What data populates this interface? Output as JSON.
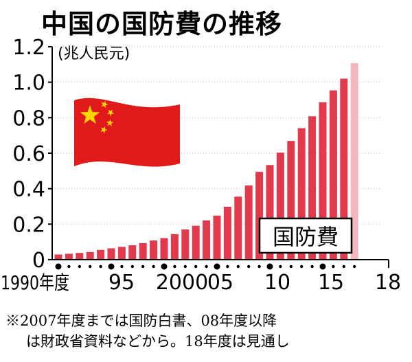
{
  "title": "中国の国防費の推移",
  "colors": {
    "bar": "#e23a4c",
    "bar_projected": "#f4b7bf",
    "flag_red": "#e01a1a",
    "flag_star": "#ffd700",
    "axis": "#000000"
  },
  "chart_data": {
    "type": "bar",
    "title": "中国の国防費の推移",
    "unit_label": "(兆人民元)",
    "series_label": "国防費",
    "xlabel": "",
    "ylabel": "",
    "ylim": [
      0,
      1.2
    ],
    "yticks": [
      0,
      0.2,
      0.4,
      0.6,
      0.8,
      1.0,
      1.2
    ],
    "ytick_labels": [
      "0",
      "0.2",
      "0.4",
      "0.6",
      "0.8",
      "1.0",
      "1.2"
    ],
    "x_labels": [
      "1990年度",
      "95",
      "2000",
      "05",
      "10",
      "15",
      "18"
    ],
    "x_label_years": [
      1990,
      1995,
      2000,
      2005,
      2010,
      2015,
      2018
    ],
    "grid": true,
    "categories": [
      1990,
      1991,
      1992,
      1993,
      1994,
      1995,
      1996,
      1997,
      1998,
      1999,
      2000,
      2001,
      2002,
      2003,
      2004,
      2005,
      2006,
      2007,
      2008,
      2009,
      2010,
      2011,
      2012,
      2013,
      2014,
      2015,
      2016,
      2017,
      2018
    ],
    "values": [
      0.029,
      0.033,
      0.038,
      0.043,
      0.055,
      0.064,
      0.072,
      0.081,
      0.093,
      0.108,
      0.121,
      0.144,
      0.17,
      0.191,
      0.221,
      0.248,
      0.298,
      0.355,
      0.418,
      0.495,
      0.533,
      0.603,
      0.669,
      0.741,
      0.808,
      0.887,
      0.954,
      1.02,
      1.107
    ],
    "projected": [
      2018
    ]
  },
  "note": {
    "line1": "※2007年度までは国防白書、08年度以降",
    "line2": "は財政省資料などから。18年度は見通し"
  },
  "icons": {
    "flag": "china-flag-icon"
  }
}
